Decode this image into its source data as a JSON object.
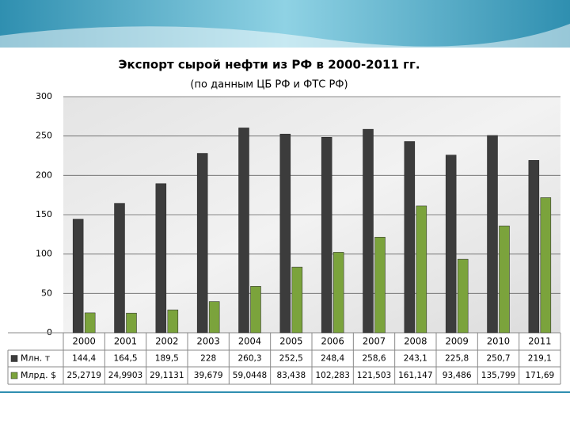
{
  "chart_data": {
    "type": "bar",
    "title": "Экспорт сырой нефти из РФ в 2000-2011 гг.",
    "subtitle": "(по данным ЦБ РФ и ФТС РФ)",
    "categories": [
      "2000",
      "2001",
      "2002",
      "2003",
      "2004",
      "2005",
      "2006",
      "2007",
      "2008",
      "2009",
      "2010",
      "2011"
    ],
    "series": [
      {
        "name": "Млн. т",
        "color": "#3c3c3c",
        "values": [
          144.4,
          164.5,
          189.5,
          228,
          260.3,
          252.5,
          248.4,
          258.6,
          243.1,
          225.8,
          250.7,
          219.1
        ],
        "value_labels": [
          "144,4",
          "164,5",
          "189,5",
          "228",
          "260,3",
          "252,5",
          "248,4",
          "258,6",
          "243,1",
          "225,8",
          "250,7",
          "219,1"
        ]
      },
      {
        "name": "Млрд. $",
        "color": "#7ba33c",
        "values": [
          25.2719,
          24.9903,
          29.1131,
          39.679,
          59.0448,
          83.438,
          102.283,
          121.503,
          161.147,
          93.486,
          135.799,
          171.69
        ],
        "value_labels": [
          "25,2719",
          "24,9903",
          "29,1131",
          "39,679",
          "59,0448",
          "83,438",
          "102,283",
          "121,503",
          "161,147",
          "93,486",
          "135,799",
          "171,69"
        ]
      }
    ],
    "ylim": [
      0,
      300
    ],
    "yticks": [
      0,
      50,
      100,
      150,
      200,
      250,
      300
    ],
    "grid": true
  }
}
